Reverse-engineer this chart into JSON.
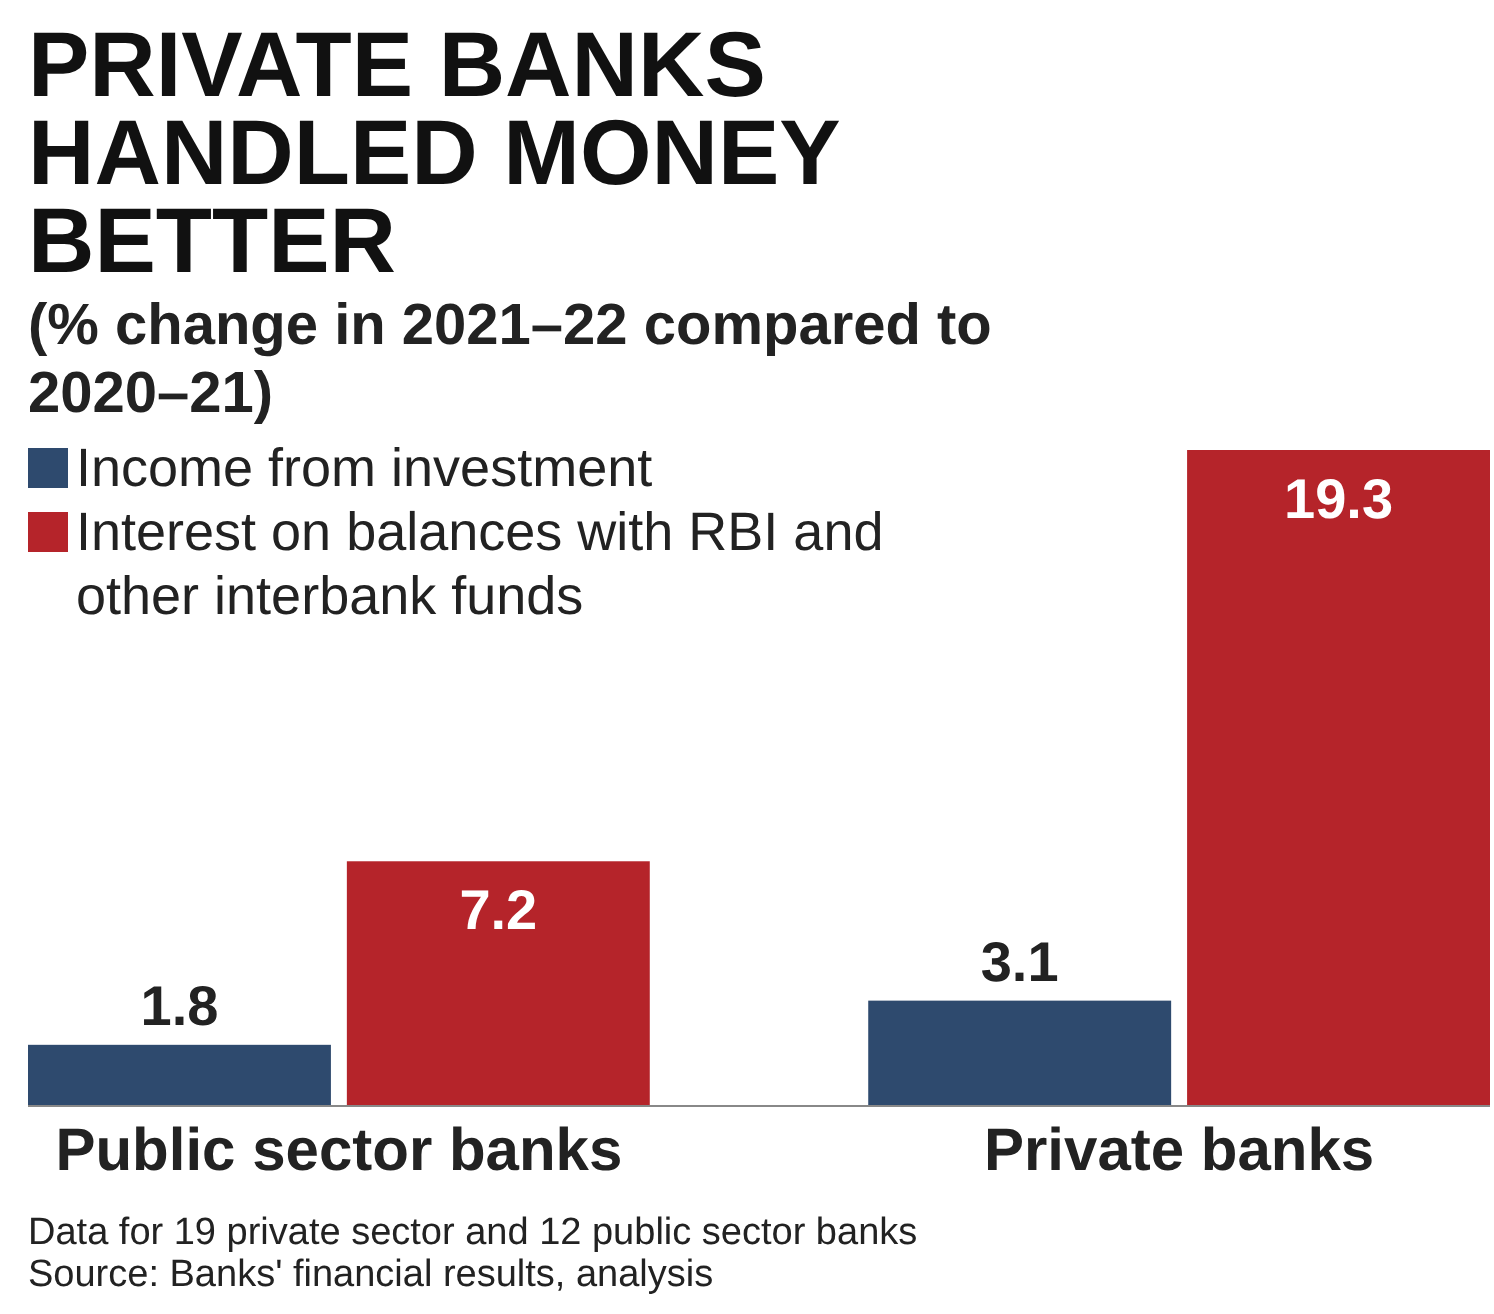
{
  "chart_data": {
    "type": "bar",
    "title": "PRIVATE BANKS HANDLED MONEY BETTER",
    "subtitle": "(% change in 2021–22 compared to 2020–21)",
    "categories": [
      "Public sector banks",
      "Private banks"
    ],
    "series": [
      {
        "name": "Income from investment",
        "color": "#2e4a6e",
        "values": [
          1.8,
          3.1
        ]
      },
      {
        "name": "Interest on balances with RBI and other interbank funds",
        "color": "#b5242a",
        "values": [
          7.2,
          19.3
        ]
      }
    ],
    "data_labels": true,
    "legend": "top left",
    "annotations": [
      "Data for 19 private sector and 12 public sector banks",
      "Source: Banks' financial results, analysis"
    ]
  }
}
